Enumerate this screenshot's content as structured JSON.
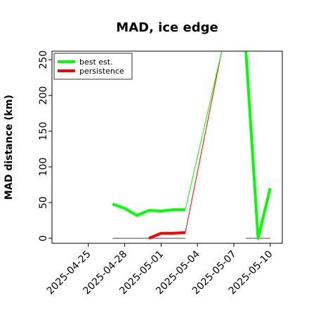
{
  "chart_data": {
    "type": "line",
    "title": "MAD, ice edge",
    "xlabel": "",
    "ylabel": "MAD distance (km)",
    "xlim": [
      "2025-04-22",
      "2025-05-11"
    ],
    "ylim": [
      -7,
      262
    ],
    "xticks": [
      "2025-04-25",
      "2025-04-28",
      "2025-05-01",
      "2025-05-04",
      "2025-05-07",
      "2025-05-10"
    ],
    "yticks": [
      0,
      50,
      100,
      150,
      200,
      250
    ],
    "grid": false,
    "legend_position": "top-left",
    "series": [
      {
        "name": "best est.",
        "color": "#00ff00",
        "thick_points": [
          {
            "x": "2025-04-27",
            "y": 48
          },
          {
            "x": "2025-04-28",
            "y": 42
          },
          {
            "x": "2025-04-29",
            "y": 32
          },
          {
            "x": "2025-04-30",
            "y": 39
          },
          {
            "x": "2025-05-01",
            "y": 38
          },
          {
            "x": "2025-05-02",
            "y": 40
          },
          {
            "x": "2025-05-03",
            "y": 40
          }
        ],
        "thin_points": [
          {
            "x": "2025-05-03",
            "y": 40
          },
          {
            "x": "2025-05-06",
            "y": 262
          }
        ],
        "thick_points_2": [
          {
            "x": "2025-05-08",
            "y": 262
          },
          {
            "x": "2025-05-09",
            "y": 0
          },
          {
            "x": "2025-05-10",
            "y": 70
          }
        ]
      },
      {
        "name": "persistence",
        "color": "#ff0000",
        "thick_points": [
          {
            "x": "2025-04-30",
            "y": 0
          },
          {
            "x": "2025-05-01",
            "y": 7
          },
          {
            "x": "2025-05-02",
            "y": 7
          },
          {
            "x": "2025-05-03",
            "y": 8
          }
        ],
        "thin_points": [
          {
            "x": "2025-05-03",
            "y": 8
          },
          {
            "x": "2025-05-06",
            "y": 262
          }
        ]
      }
    ],
    "zero_segments": [
      {
        "x": [
          "2025-04-27",
          "2025-05-03"
        ],
        "y": 0,
        "color": "#808080"
      },
      {
        "x": [
          "2025-05-08",
          "2025-05-10"
        ],
        "y": 0,
        "color": "#808080"
      }
    ]
  }
}
